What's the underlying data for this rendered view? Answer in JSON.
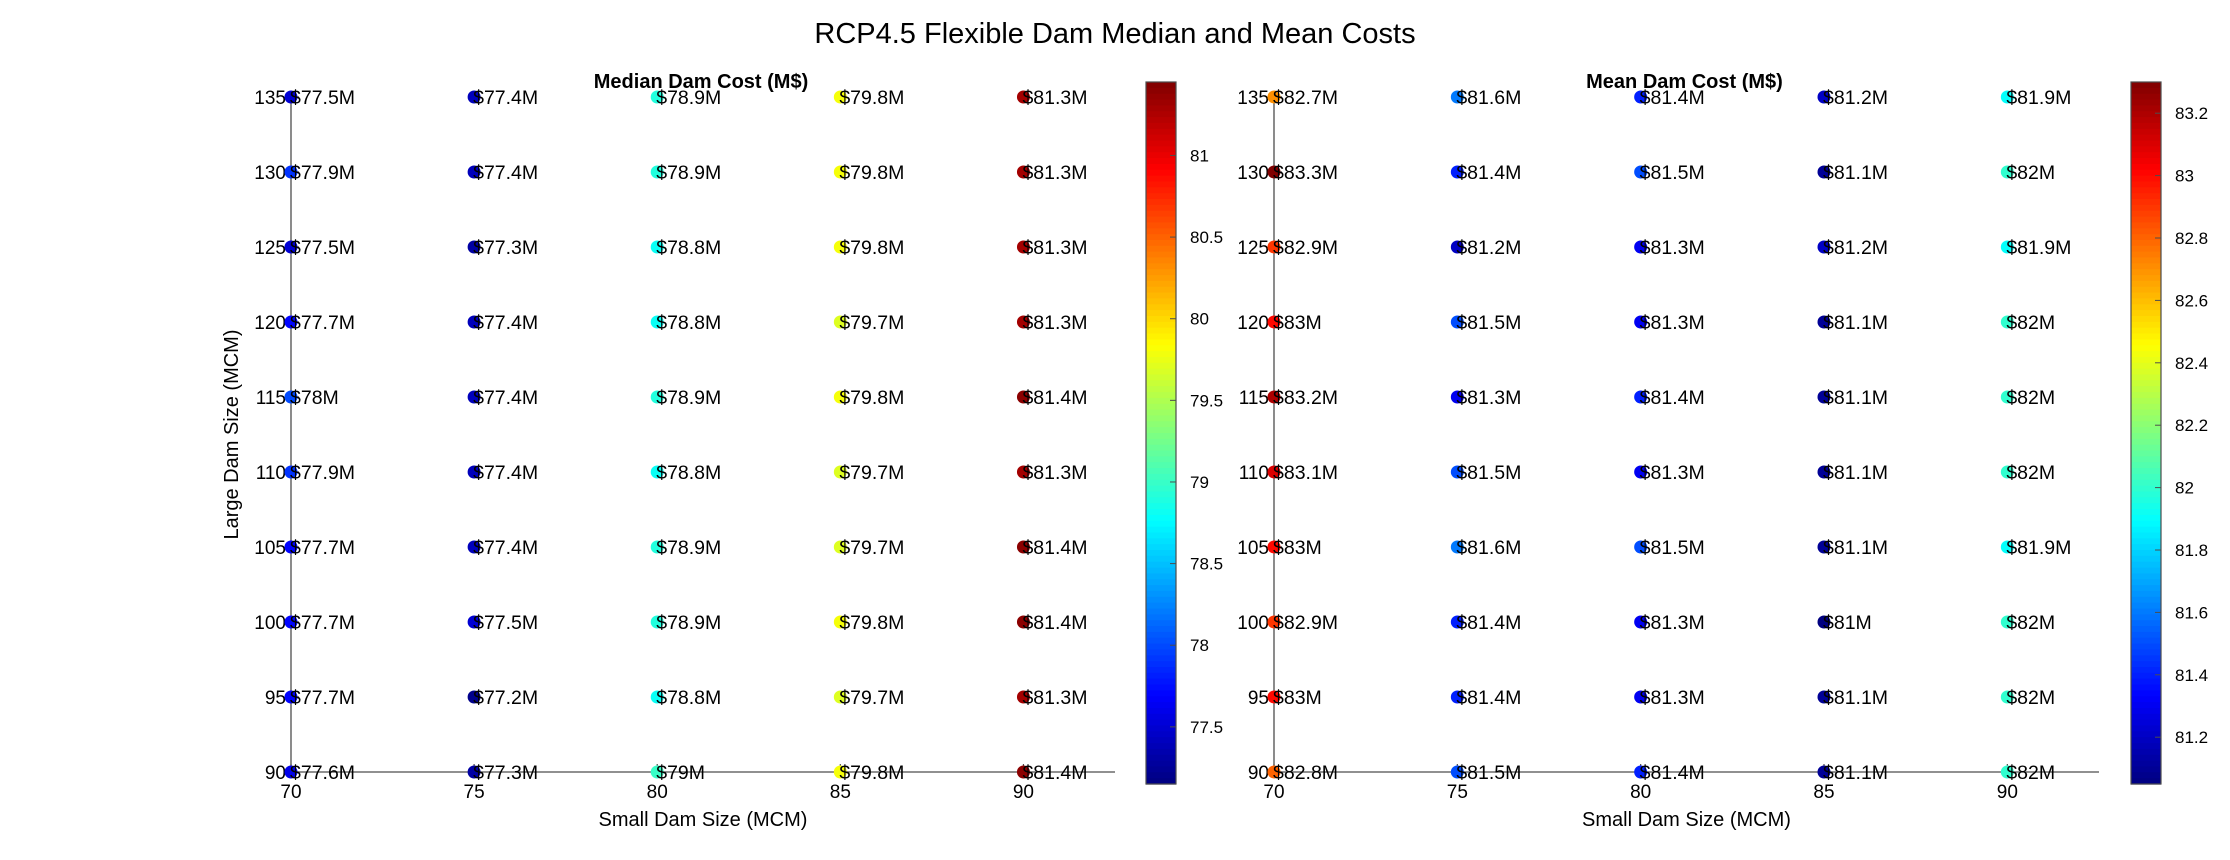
{
  "figure": {
    "title": "RCP4.5 Flexible Dam Median and Mean Costs"
  },
  "chart_data": [
    {
      "type": "scatter",
      "title": "Median Dam Cost (M$)",
      "xlabel": "Small Dam Size (MCM)",
      "ylabel": "Large Dam Size (MCM)",
      "x": [
        70,
        75,
        80,
        85,
        90
      ],
      "y": [
        135,
        130,
        125,
        120,
        115,
        110,
        105,
        100,
        95,
        90
      ],
      "xlim": [
        70,
        92.5
      ],
      "ylim": [
        90,
        135
      ],
      "grid": false,
      "colormap": "jet",
      "clim": [
        77.15,
        81.45
      ],
      "colorbar_ticks": [
        77.5,
        78,
        78.5,
        79,
        79.5,
        80,
        80.5,
        81
      ],
      "values": [
        [
          77.5,
          77.4,
          78.9,
          79.8,
          81.3
        ],
        [
          77.9,
          77.4,
          78.9,
          79.8,
          81.3
        ],
        [
          77.5,
          77.3,
          78.8,
          79.8,
          81.3
        ],
        [
          77.7,
          77.4,
          78.8,
          79.7,
          81.3
        ],
        [
          78.0,
          77.4,
          78.9,
          79.8,
          81.4
        ],
        [
          77.9,
          77.4,
          78.8,
          79.7,
          81.3
        ],
        [
          77.7,
          77.4,
          78.9,
          79.7,
          81.4
        ],
        [
          77.7,
          77.5,
          78.9,
          79.8,
          81.4
        ],
        [
          77.7,
          77.2,
          78.8,
          79.7,
          81.3
        ],
        [
          77.6,
          77.3,
          79.0,
          79.8,
          81.4
        ]
      ],
      "labels": [
        [
          "$77.5M",
          "$77.4M",
          "$78.9M",
          "$79.8M",
          "$81.3M"
        ],
        [
          "$77.9M",
          "$77.4M",
          "$78.9M",
          "$79.8M",
          "$81.3M"
        ],
        [
          "$77.5M",
          "$77.3M",
          "$78.8M",
          "$79.8M",
          "$81.3M"
        ],
        [
          "$77.7M",
          "$77.4M",
          "$78.8M",
          "$79.7M",
          "$81.3M"
        ],
        [
          "$78M",
          "$77.4M",
          "$78.9M",
          "$79.8M",
          "$81.4M"
        ],
        [
          "$77.9M",
          "$77.4M",
          "$78.8M",
          "$79.7M",
          "$81.3M"
        ],
        [
          "$77.7M",
          "$77.4M",
          "$78.9M",
          "$79.7M",
          "$81.4M"
        ],
        [
          "$77.7M",
          "$77.5M",
          "$78.9M",
          "$79.8M",
          "$81.4M"
        ],
        [
          "$77.7M",
          "$77.2M",
          "$78.8M",
          "$79.7M",
          "$81.3M"
        ],
        [
          "$77.6M",
          "$77.3M",
          "$79M",
          "$79.8M",
          "$81.4M"
        ]
      ]
    },
    {
      "type": "scatter",
      "title": "Mean Dam Cost (M$)",
      "xlabel": "Small Dam Size (MCM)",
      "ylabel": "",
      "x": [
        70,
        75,
        80,
        85,
        90
      ],
      "y": [
        135,
        130,
        125,
        120,
        115,
        110,
        105,
        100,
        95,
        90
      ],
      "xlim": [
        70,
        92.5
      ],
      "ylim": [
        90,
        135
      ],
      "grid": false,
      "colormap": "jet",
      "clim": [
        81.05,
        83.3
      ],
      "colorbar_ticks": [
        81.2,
        81.4,
        81.6,
        81.8,
        82,
        82.2,
        82.4,
        82.6,
        82.8,
        83,
        83.2
      ],
      "values": [
        [
          82.7,
          81.6,
          81.4,
          81.2,
          81.9
        ],
        [
          83.3,
          81.4,
          81.5,
          81.1,
          82.0
        ],
        [
          82.9,
          81.2,
          81.3,
          81.2,
          81.9
        ],
        [
          83.0,
          81.5,
          81.3,
          81.1,
          82.0
        ],
        [
          83.2,
          81.3,
          81.4,
          81.1,
          82.0
        ],
        [
          83.1,
          81.5,
          81.3,
          81.1,
          82.0
        ],
        [
          83.0,
          81.6,
          81.5,
          81.1,
          81.9
        ],
        [
          82.9,
          81.4,
          81.3,
          81.0,
          82.0
        ],
        [
          83.0,
          81.4,
          81.3,
          81.1,
          82.0
        ],
        [
          82.8,
          81.5,
          81.4,
          81.1,
          82.0
        ]
      ],
      "labels": [
        [
          "$82.7M",
          "$81.6M",
          "$81.4M",
          "$81.2M",
          "$81.9M"
        ],
        [
          "$83.3M",
          "$81.4M",
          "$81.5M",
          "$81.1M",
          "$82M"
        ],
        [
          "$82.9M",
          "$81.2M",
          "$81.3M",
          "$81.2M",
          "$81.9M"
        ],
        [
          "$83M",
          "$81.5M",
          "$81.3M",
          "$81.1M",
          "$82M"
        ],
        [
          "$83.2M",
          "$81.3M",
          "$81.4M",
          "$81.1M",
          "$82M"
        ],
        [
          "$83.1M",
          "$81.5M",
          "$81.3M",
          "$81.1M",
          "$82M"
        ],
        [
          "$83M",
          "$81.6M",
          "$81.5M",
          "$81.1M",
          "$81.9M"
        ],
        [
          "$82.9M",
          "$81.4M",
          "$81.3M",
          "$81M",
          "$82M"
        ],
        [
          "$83M",
          "$81.4M",
          "$81.3M",
          "$81.1M",
          "$82M"
        ],
        [
          "$82.8M",
          "$81.5M",
          "$81.4M",
          "$81.1M",
          "$82M"
        ]
      ]
    }
  ]
}
